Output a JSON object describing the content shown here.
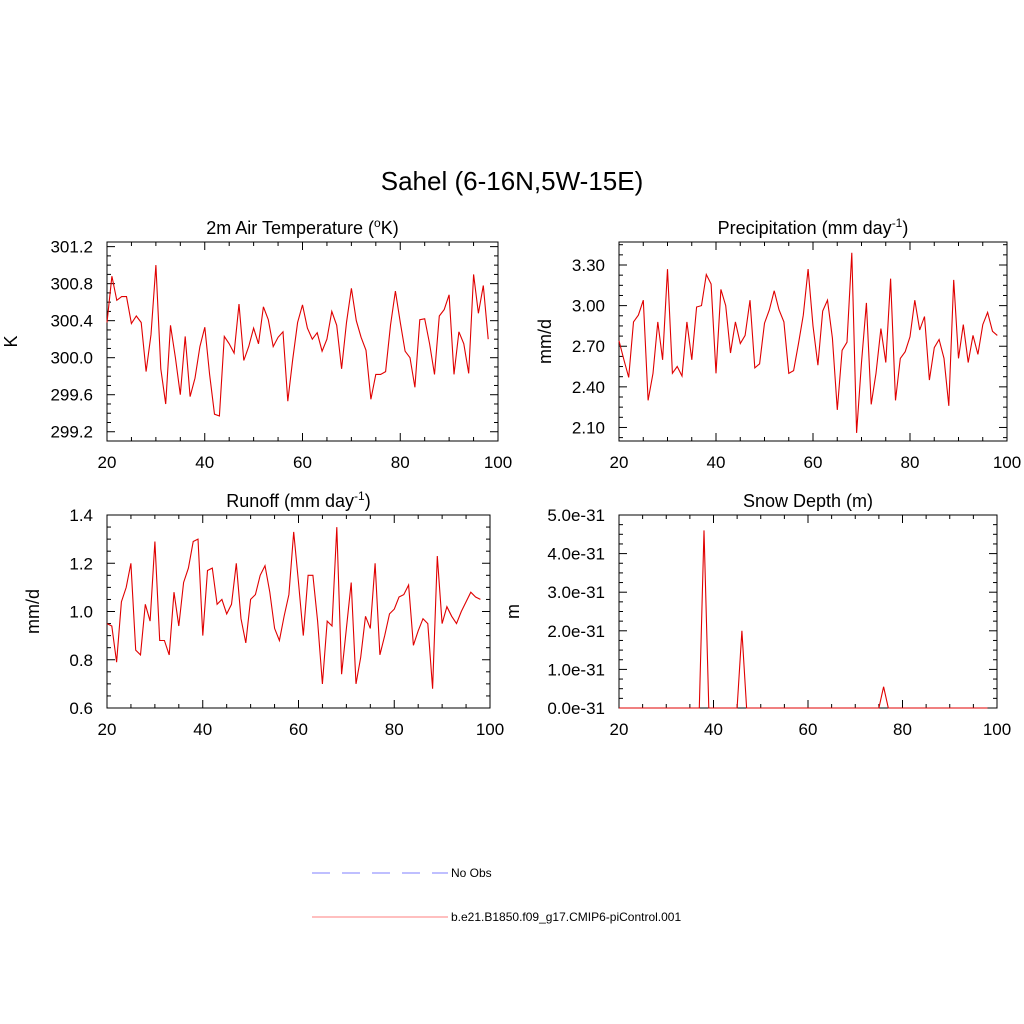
{
  "title": "Sahel (6-16N,5W-15E)",
  "line_color": "#e00000",
  "obs_color": "#9999ff",
  "legend": [
    {
      "label": "No Obs",
      "style": "dashed",
      "color": "#9999ff"
    },
    {
      "label": "b.e21.B1850.f09_g17.CMIP6-piControl.001",
      "style": "solid",
      "color": "#ff9999"
    }
  ],
  "chart_data": [
    {
      "type": "line",
      "title_main": "2m Air Temperature (",
      "title_sup": "o",
      "title_end": "K)",
      "ylabel": "K",
      "xlim": [
        20,
        100
      ],
      "ylim": [
        299.1,
        301.25
      ],
      "xticks": [
        20,
        40,
        60,
        80,
        100
      ],
      "xtick_labels": [
        "20",
        "40",
        "60",
        "80",
        "100"
      ],
      "yticks": [
        299.2,
        299.6,
        300.0,
        300.4,
        300.8,
        301.2
      ],
      "ytick_labels": [
        "299.2",
        "299.6",
        "300.0",
        "300.4",
        "300.8",
        "301.2"
      ],
      "x": [
        20,
        21,
        22,
        23,
        24,
        25,
        26,
        27,
        28,
        29,
        30,
        31,
        32,
        33,
        34,
        35,
        36,
        37,
        38,
        39,
        40,
        41,
        42,
        43,
        44,
        45,
        46,
        47,
        48,
        49,
        50,
        51,
        52,
        53,
        54,
        55,
        56,
        57,
        58,
        59,
        60,
        61,
        62,
        63,
        64,
        65,
        66,
        67,
        68,
        69,
        70,
        71,
        72,
        73,
        74,
        75,
        76,
        77,
        78,
        79,
        80,
        81,
        82,
        83,
        84,
        85,
        86,
        87,
        88,
        89,
        90,
        91,
        92,
        93,
        94,
        95,
        96,
        97,
        98
      ],
      "y": [
        300.38,
        300.88,
        300.62,
        300.66,
        300.66,
        300.37,
        300.45,
        300.38,
        299.85,
        300.25,
        301.0,
        299.88,
        299.5,
        300.35,
        300.0,
        299.6,
        300.23,
        299.58,
        299.78,
        300.12,
        300.33,
        299.82,
        299.39,
        299.37,
        300.23,
        300.15,
        300.05,
        300.58,
        299.97,
        300.12,
        300.32,
        300.15,
        300.55,
        300.41,
        300.12,
        300.22,
        300.28,
        299.53,
        299.98,
        300.38,
        300.57,
        300.32,
        300.2,
        300.27,
        300.07,
        300.2,
        300.5,
        300.35,
        299.88,
        300.38,
        300.75,
        300.4,
        300.22,
        300.08,
        299.55,
        299.82,
        299.82,
        299.85,
        300.35,
        300.72,
        300.38,
        300.07,
        300.0,
        299.68,
        300.41,
        300.42,
        300.15,
        299.82,
        300.45,
        300.52,
        300.68,
        299.82,
        300.28,
        300.15,
        299.83,
        300.9,
        300.48,
        300.78,
        300.2
      ]
    },
    {
      "type": "line",
      "title_main": "Precipitation (mm day",
      "title_sup": "-1",
      "title_end": ")",
      "ylabel": "mm/d",
      "xlim": [
        20,
        100
      ],
      "ylim": [
        2.0,
        3.47
      ],
      "xticks": [
        20,
        40,
        60,
        80,
        100
      ],
      "xtick_labels": [
        "20",
        "40",
        "60",
        "80",
        "100"
      ],
      "yticks": [
        2.1,
        2.4,
        2.7,
        3.0,
        3.3
      ],
      "ytick_labels": [
        "2.10",
        "2.40",
        "2.70",
        "3.00",
        "3.30"
      ],
      "x": [
        20,
        21,
        22,
        23,
        24,
        25,
        26,
        27,
        28,
        29,
        30,
        31,
        32,
        33,
        34,
        35,
        36,
        37,
        38,
        39,
        40,
        41,
        42,
        43,
        44,
        45,
        46,
        47,
        48,
        49,
        50,
        51,
        52,
        53,
        54,
        55,
        56,
        57,
        58,
        59,
        60,
        61,
        62,
        63,
        64,
        65,
        66,
        67,
        68,
        69,
        70,
        71,
        72,
        73,
        74,
        75,
        76,
        77,
        78,
        79,
        80,
        81,
        82,
        83,
        84,
        85,
        86,
        87,
        88,
        89,
        90,
        91,
        92,
        93,
        94,
        95,
        96,
        97,
        98
      ],
      "y": [
        2.74,
        2.6,
        2.47,
        2.88,
        2.93,
        3.04,
        2.3,
        2.5,
        2.88,
        2.6,
        3.27,
        2.5,
        2.55,
        2.48,
        2.88,
        2.6,
        2.99,
        3.0,
        3.23,
        3.16,
        2.5,
        3.12,
        3.0,
        2.65,
        2.88,
        2.72,
        2.78,
        3.04,
        2.54,
        2.57,
        2.87,
        2.97,
        3.11,
        2.97,
        2.88,
        2.5,
        2.52,
        2.72,
        2.93,
        3.27,
        2.85,
        2.56,
        2.96,
        3.04,
        2.76,
        2.23,
        2.67,
        2.73,
        3.39,
        2.06,
        2.58,
        3.02,
        2.27,
        2.5,
        2.83,
        2.58,
        3.2,
        2.3,
        2.61,
        2.66,
        2.77,
        3.04,
        2.82,
        2.92,
        2.45,
        2.69,
        2.75,
        2.61,
        2.26,
        3.19,
        2.61,
        2.86,
        2.58,
        2.78,
        2.64,
        2.86,
        2.95,
        2.81,
        2.78
      ]
    },
    {
      "type": "line",
      "title_main": "Runoff (mm day",
      "title_sup": "-1",
      "title_end": ")",
      "ylabel": "mm/d",
      "xlim": [
        20,
        100
      ],
      "ylim": [
        0.6,
        1.4
      ],
      "xticks": [
        20,
        40,
        60,
        80,
        100
      ],
      "xtick_labels": [
        "20",
        "40",
        "60",
        "80",
        "100"
      ],
      "yticks": [
        0.6,
        0.8,
        1.0,
        1.2,
        1.4
      ],
      "ytick_labels": [
        "0.6",
        "0.8",
        "1.0",
        "1.2",
        "1.4"
      ],
      "x": [
        20,
        21,
        22,
        23,
        24,
        25,
        26,
        27,
        28,
        29,
        30,
        31,
        32,
        33,
        34,
        35,
        36,
        37,
        38,
        39,
        40,
        41,
        42,
        43,
        44,
        45,
        46,
        47,
        48,
        49,
        50,
        51,
        52,
        53,
        54,
        55,
        56,
        57,
        58,
        59,
        60,
        61,
        62,
        63,
        64,
        65,
        66,
        67,
        68,
        69,
        70,
        71,
        72,
        73,
        74,
        75,
        76,
        77,
        78,
        79,
        80,
        81,
        82,
        83,
        84,
        85,
        86,
        87,
        88,
        89,
        90,
        91,
        92,
        93,
        94,
        95,
        96,
        97,
        98
      ],
      "y": [
        0.95,
        0.94,
        0.79,
        1.04,
        1.1,
        1.2,
        0.84,
        0.82,
        1.03,
        0.96,
        1.29,
        0.88,
        0.88,
        0.82,
        1.08,
        0.94,
        1.12,
        1.18,
        1.29,
        1.3,
        0.9,
        1.17,
        1.18,
        1.03,
        1.05,
        0.99,
        1.03,
        1.2,
        0.97,
        0.87,
        1.05,
        1.07,
        1.15,
        1.19,
        1.08,
        0.93,
        0.88,
        0.98,
        1.07,
        1.33,
        1.12,
        0.9,
        1.15,
        1.15,
        0.96,
        0.7,
        0.96,
        0.94,
        1.35,
        0.74,
        0.93,
        1.12,
        0.7,
        0.81,
        0.98,
        0.93,
        1.2,
        0.82,
        0.9,
        0.99,
        1.01,
        1.06,
        1.07,
        1.11,
        0.86,
        0.92,
        0.97,
        0.95,
        0.68,
        1.23,
        0.95,
        1.02,
        0.98,
        0.95,
        1.0,
        1.04,
        1.08,
        1.06,
        1.05
      ]
    },
    {
      "type": "line",
      "title_main": "Snow Depth (m)",
      "title_sup": "",
      "title_end": "",
      "ylabel": "m",
      "xlim": [
        20,
        100
      ],
      "ylim": [
        0.0,
        5.0
      ],
      "xticks": [
        20,
        40,
        60,
        80,
        100
      ],
      "xtick_labels": [
        "20",
        "40",
        "60",
        "80",
        "100"
      ],
      "yticks": [
        0.0,
        1.0,
        2.0,
        3.0,
        4.0,
        5.0
      ],
      "ytick_labels": [
        "0.0e-31",
        "1.0e-31",
        "2.0e-31",
        "3.0e-31",
        "4.0e-31",
        "5.0e-31"
      ],
      "y_scale_note": "values in units of 1e-31 m",
      "x": [
        20,
        37,
        38,
        39,
        45,
        46,
        47,
        75,
        76,
        77,
        98
      ],
      "y": [
        0,
        0,
        4.6,
        0,
        0,
        2.0,
        0,
        0,
        0.55,
        0,
        0
      ]
    }
  ]
}
